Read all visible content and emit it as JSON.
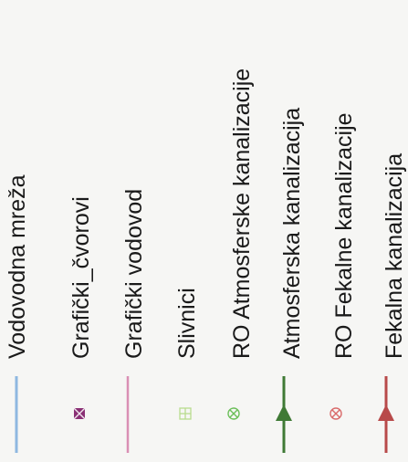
{
  "legend": {
    "items": [
      {
        "key": "vodovodna-mreza",
        "label": "Vodovodna mreža",
        "symbol": "line",
        "color": "#8fb8e0"
      },
      {
        "key": "graficki-cvorovi",
        "label": "Grafički_čvorovi",
        "symbol": "crossed-square",
        "color": "#8a2f74"
      },
      {
        "key": "graficki-vodovod",
        "label": "Grafički vodovod",
        "symbol": "line",
        "color": "#d98fb4"
      },
      {
        "key": "slivnici",
        "label": "Slivnici",
        "symbol": "grid-square",
        "color": "#b8dc8e"
      },
      {
        "key": "ro-atmosferske",
        "label": "RO Atmosferske kanalizacije",
        "symbol": "circle-x",
        "color": "#6cbf5a"
      },
      {
        "key": "atmosferska",
        "label": "Atmosferska kanalizacija",
        "symbol": "arrow-line",
        "color": "#3f7a35"
      },
      {
        "key": "ro-fekalne",
        "label": "RO Fekalne kanalizacije",
        "symbol": "circle-x",
        "color": "#d96a6a"
      },
      {
        "key": "fekalna",
        "label": "Fekalna kanalizacija",
        "symbol": "arrow-line",
        "color": "#b84a4a"
      }
    ]
  }
}
